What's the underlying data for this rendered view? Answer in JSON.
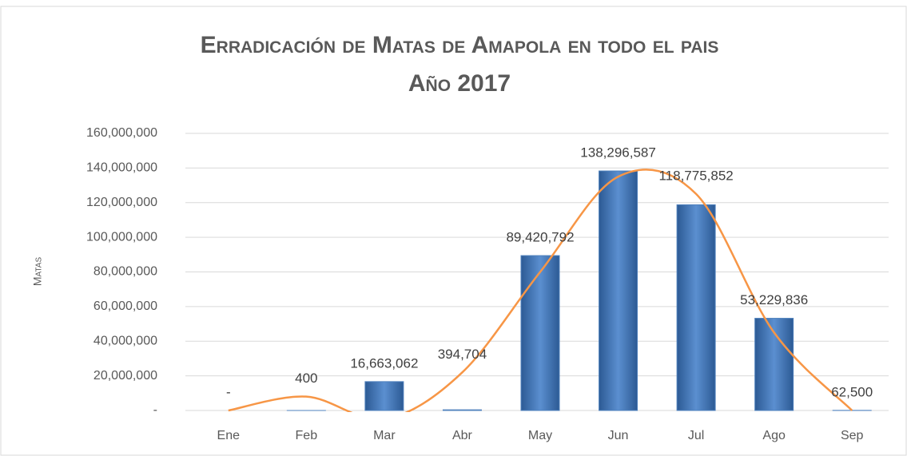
{
  "chart_data": {
    "type": "bar",
    "title": "Erradicación de Matas de Amapola en todo el pais",
    "subtitle": "Año 2017",
    "y_label": "Matas",
    "categories": [
      "Ene",
      "Feb",
      "Mar",
      "Abr",
      "May",
      "Jun",
      "Jul",
      "Ago",
      "Sep"
    ],
    "values": [
      0,
      400,
      16663062,
      394704,
      89420792,
      138296587,
      118775852,
      53229836,
      62500
    ],
    "value_labels": [
      "-",
      "400",
      "16,663,062",
      "394,704",
      "89,420,792",
      "138,296,587",
      "118,775,852",
      "53,229,836",
      "62,500"
    ],
    "color": "#4f81bd",
    "trend": {
      "color": "#f79646",
      "values": [
        0,
        8000000,
        -5000000,
        22000000,
        80000000,
        135000000,
        125000000,
        45000000,
        0
      ]
    },
    "ylim": [
      0,
      160000000
    ],
    "yticks": [
      {
        "value": 0,
        "label": "-"
      },
      {
        "value": 20000000,
        "label": "20,000,000"
      },
      {
        "value": 40000000,
        "label": "40,000,000"
      },
      {
        "value": 60000000,
        "label": "60,000,000"
      },
      {
        "value": 80000000,
        "label": "80,000,000"
      },
      {
        "value": 100000000,
        "label": "100,000,000"
      },
      {
        "value": 120000000,
        "label": "120,000,000"
      },
      {
        "value": 140000000,
        "label": "140,000,000"
      },
      {
        "value": 160000000,
        "label": "160,000,000"
      }
    ],
    "grid": true
  }
}
